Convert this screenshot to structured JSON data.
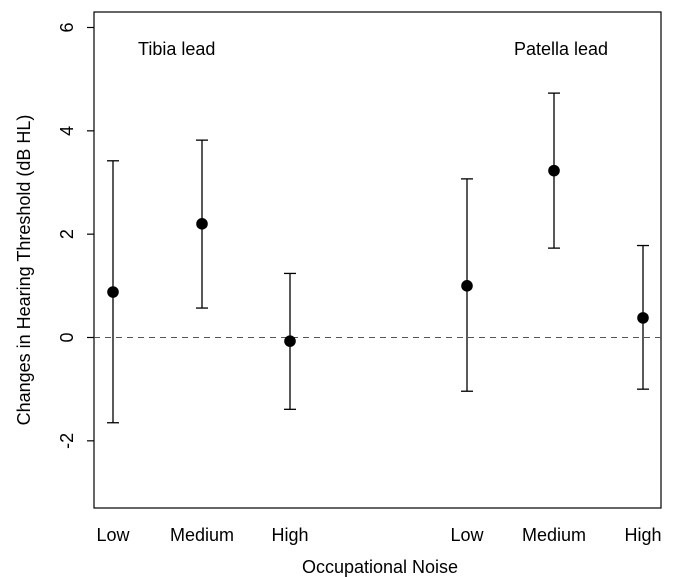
{
  "chart_data": {
    "type": "scatter",
    "xlabel": "Occupational Noise",
    "ylabel": "Changes in Hearing Threshold (dB HL)",
    "ylim": [
      -3.3,
      6.3
    ],
    "yticks": [
      -2,
      0,
      2,
      4,
      6
    ],
    "reference_line": {
      "y": 0,
      "style": "dashed"
    },
    "grid": false,
    "legend": "none",
    "groups": [
      {
        "label": "Tibia lead",
        "points": [
          {
            "category": "Low",
            "estimate": 0.88,
            "lower": -1.65,
            "upper": 3.42
          },
          {
            "category": "Medium",
            "estimate": 2.2,
            "lower": 0.57,
            "upper": 3.82
          },
          {
            "category": "High",
            "estimate": -0.07,
            "lower": -1.39,
            "upper": 1.24
          }
        ]
      },
      {
        "label": "Patella lead",
        "points": [
          {
            "category": "Low",
            "estimate": 1.0,
            "lower": -1.04,
            "upper": 3.07
          },
          {
            "category": "Medium",
            "estimate": 3.23,
            "lower": 1.73,
            "upper": 4.73
          },
          {
            "category": "High",
            "estimate": 0.38,
            "lower": -1.0,
            "upper": 1.78
          }
        ]
      }
    ],
    "colors": {
      "points": "#000000",
      "lines": "#000000",
      "reference_line": "#555555"
    }
  }
}
